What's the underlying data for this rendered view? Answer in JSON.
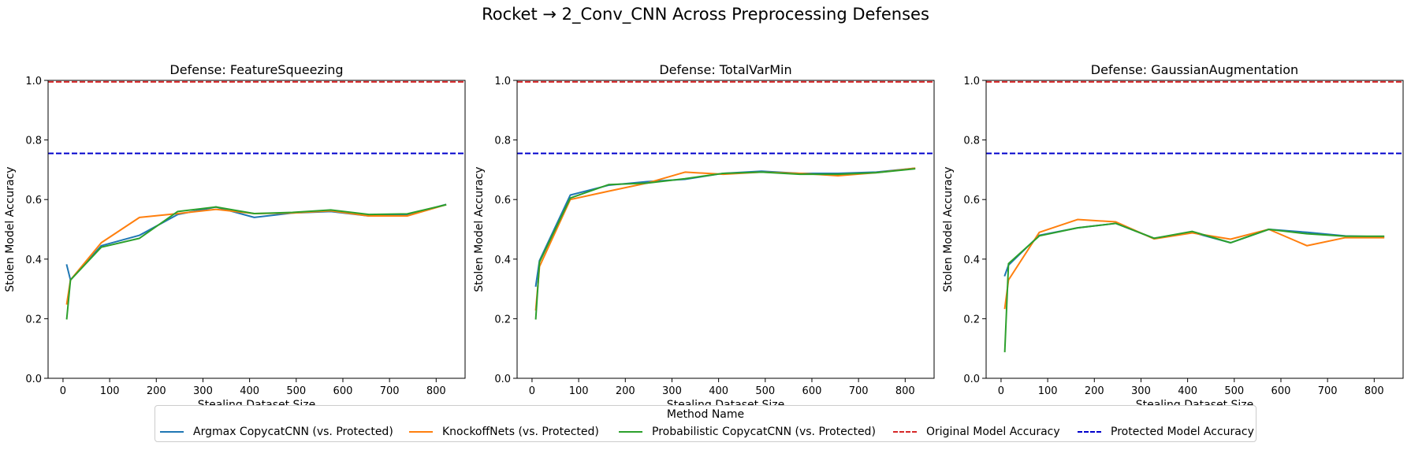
{
  "figure": {
    "title": "Rocket → 2_Conv_CNN Across Preprocessing Defenses"
  },
  "legend": {
    "title": "Method Name",
    "items": [
      {
        "label": "Argmax CopycatCNN (vs. Protected)",
        "color": "#1f77b4",
        "style": "solid"
      },
      {
        "label": "KnockoffNets (vs. Protected)",
        "color": "#ff7f0e",
        "style": "solid"
      },
      {
        "label": "Probabilistic CopycatCNN (vs. Protected)",
        "color": "#2ca02c",
        "style": "solid"
      },
      {
        "label": "Original Model Accuracy",
        "color": "#d62728",
        "style": "dashed"
      },
      {
        "label": "Protected Model Accuracy",
        "color": "#0000cc",
        "style": "dashed"
      }
    ]
  },
  "chart_data": [
    {
      "type": "line",
      "title": "Defense: FeatureSqueezing",
      "xlabel": "Stealing Dataset Size",
      "ylabel": "Stolen Model Accuracy",
      "xlim": [
        -32,
        862
      ],
      "ylim": [
        0,
        1.0
      ],
      "xticks": [
        0,
        100,
        200,
        300,
        400,
        500,
        600,
        700,
        800
      ],
      "yticks": [
        0.0,
        0.2,
        0.4,
        0.6,
        0.8,
        1.0
      ],
      "grid": false,
      "hlines": [
        {
          "name": "Original Model Accuracy",
          "y": 0.995,
          "color": "#d62728"
        },
        {
          "name": "Protected Model Accuracy",
          "y": 0.755,
          "color": "#0000cc"
        }
      ],
      "series": [
        {
          "name": "Argmax CopycatCNN (vs. Protected)",
          "color": "#1f77b4",
          "x": [
            8,
            16,
            82,
            164,
            246,
            328,
            410,
            492,
            574,
            656,
            738,
            820
          ],
          "y": [
            0.38,
            0.33,
            0.445,
            0.48,
            0.55,
            0.575,
            0.54,
            0.555,
            0.56,
            0.545,
            0.548,
            0.583
          ]
        },
        {
          "name": "KnockoffNets (vs. Protected)",
          "color": "#ff7f0e",
          "x": [
            8,
            16,
            82,
            164,
            246,
            328,
            410,
            492,
            574,
            656,
            738,
            820
          ],
          "y": [
            0.25,
            0.33,
            0.455,
            0.54,
            0.553,
            0.567,
            0.553,
            0.555,
            0.562,
            0.545,
            0.545,
            0.582
          ]
        },
        {
          "name": "Probabilistic CopycatCNN (vs. Protected)",
          "color": "#2ca02c",
          "x": [
            8,
            16,
            82,
            164,
            246,
            328,
            410,
            492,
            574,
            656,
            738,
            820
          ],
          "y": [
            0.2,
            0.33,
            0.44,
            0.47,
            0.56,
            0.575,
            0.553,
            0.557,
            0.565,
            0.55,
            0.552,
            0.582
          ]
        }
      ]
    },
    {
      "type": "line",
      "title": "Defense: TotalVarMin",
      "xlabel": "Stealing Dataset Size",
      "ylabel": "Stolen Model Accuracy",
      "xlim": [
        -32,
        862
      ],
      "ylim": [
        0,
        1.0
      ],
      "xticks": [
        0,
        100,
        200,
        300,
        400,
        500,
        600,
        700,
        800
      ],
      "yticks": [
        0.0,
        0.2,
        0.4,
        0.6,
        0.8,
        1.0
      ],
      "grid": false,
      "hlines": [
        {
          "name": "Original Model Accuracy",
          "y": 0.995,
          "color": "#d62728"
        },
        {
          "name": "Protected Model Accuracy",
          "y": 0.755,
          "color": "#0000cc"
        }
      ],
      "series": [
        {
          "name": "Argmax CopycatCNN (vs. Protected)",
          "color": "#1f77b4",
          "x": [
            8,
            16,
            82,
            164,
            246,
            328,
            410,
            492,
            574,
            656,
            738,
            820
          ],
          "y": [
            0.31,
            0.395,
            0.615,
            0.648,
            0.66,
            0.668,
            0.688,
            0.695,
            0.688,
            0.688,
            0.692,
            0.705
          ]
        },
        {
          "name": "KnockoffNets (vs. Protected)",
          "color": "#ff7f0e",
          "x": [
            8,
            16,
            82,
            164,
            246,
            328,
            410,
            492,
            574,
            656,
            738,
            820
          ],
          "y": [
            0.23,
            0.375,
            0.6,
            0.628,
            0.655,
            0.692,
            0.685,
            0.692,
            0.688,
            0.68,
            0.69,
            0.705
          ]
        },
        {
          "name": "Probabilistic CopycatCNN (vs. Protected)",
          "color": "#2ca02c",
          "x": [
            8,
            16,
            82,
            164,
            246,
            328,
            410,
            492,
            574,
            656,
            738,
            820
          ],
          "y": [
            0.2,
            0.39,
            0.605,
            0.65,
            0.655,
            0.67,
            0.688,
            0.692,
            0.685,
            0.685,
            0.69,
            0.703
          ]
        }
      ]
    },
    {
      "type": "line",
      "title": "Defense: GaussianAugmentation",
      "xlabel": "Stealing Dataset Size",
      "ylabel": "Stolen Model Accuracy",
      "xlim": [
        -32,
        862
      ],
      "ylim": [
        0,
        1.0
      ],
      "xticks": [
        0,
        100,
        200,
        300,
        400,
        500,
        600,
        700,
        800
      ],
      "yticks": [
        0.0,
        0.2,
        0.4,
        0.6,
        0.8,
        1.0
      ],
      "grid": false,
      "hlines": [
        {
          "name": "Original Model Accuracy",
          "y": 0.995,
          "color": "#d62728"
        },
        {
          "name": "Protected Model Accuracy",
          "y": 0.755,
          "color": "#0000cc"
        }
      ],
      "series": [
        {
          "name": "Argmax CopycatCNN (vs. Protected)",
          "color": "#1f77b4",
          "x": [
            8,
            16,
            82,
            164,
            246,
            328,
            410,
            492,
            574,
            656,
            738,
            820
          ],
          "y": [
            0.345,
            0.38,
            0.48,
            0.505,
            0.52,
            0.47,
            0.49,
            0.455,
            0.5,
            0.49,
            0.478,
            0.475
          ]
        },
        {
          "name": "KnockoffNets (vs. Protected)",
          "color": "#ff7f0e",
          "x": [
            8,
            16,
            82,
            164,
            246,
            328,
            410,
            492,
            574,
            656,
            738,
            820
          ],
          "y": [
            0.235,
            0.33,
            0.49,
            0.533,
            0.525,
            0.468,
            0.488,
            0.467,
            0.5,
            0.445,
            0.472,
            0.472
          ]
        },
        {
          "name": "Probabilistic CopycatCNN (vs. Protected)",
          "color": "#2ca02c",
          "x": [
            8,
            16,
            82,
            164,
            246,
            328,
            410,
            492,
            574,
            656,
            738,
            820
          ],
          "y": [
            0.09,
            0.385,
            0.478,
            0.505,
            0.52,
            0.47,
            0.493,
            0.455,
            0.5,
            0.485,
            0.477,
            0.477
          ]
        }
      ]
    }
  ]
}
